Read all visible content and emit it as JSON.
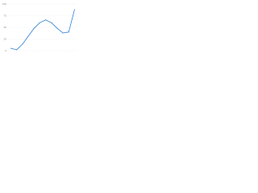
{
  "chart_data": {
    "type": "line",
    "categories": [
      null,
      null,
      null,
      null,
      null,
      null,
      null,
      null,
      null,
      null,
      null,
      null
    ],
    "series": [
      {
        "color": "#2f7fd6",
        "values": [
          5,
          2,
          14,
          31,
          48,
          60,
          66,
          60,
          48,
          38,
          40,
          88
        ]
      }
    ],
    "ylim": [
      0,
      100
    ],
    "yticks": [
      0,
      25,
      50,
      75,
      100
    ],
    "grid": true
  }
}
